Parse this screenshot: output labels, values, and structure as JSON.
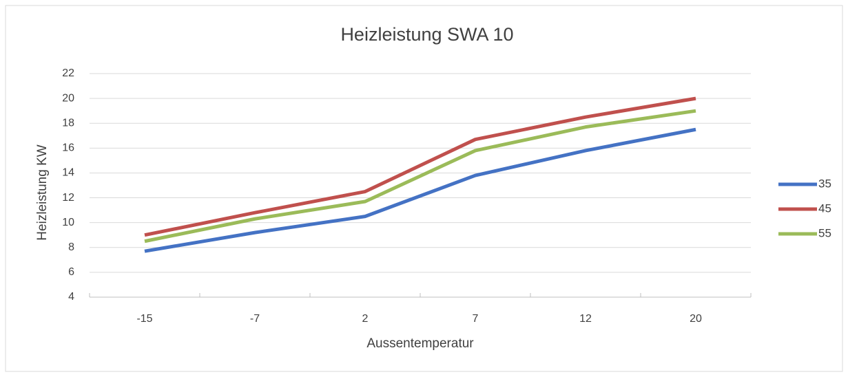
{
  "chart_data": {
    "type": "line",
    "title": "Heizleistung SWA 10",
    "x_label": "Aussentemperatur",
    "y_label": "Heizleistung KW",
    "categories": [
      "-15",
      "-7",
      "2",
      "7",
      "12",
      "20"
    ],
    "series": [
      {
        "name": "35",
        "color": "#4472c4",
        "values": [
          7.7,
          9.2,
          10.5,
          13.8,
          15.8,
          17.5
        ]
      },
      {
        "name": "45",
        "color": "#c0504d",
        "values": [
          9,
          10.8,
          12.5,
          16.7,
          18.5,
          20
        ]
      },
      {
        "name": "55",
        "color": "#9bbb59",
        "values": [
          8.5,
          10.3,
          11.7,
          15.8,
          17.7,
          19
        ]
      }
    ],
    "ylim": [
      4,
      22
    ],
    "yticks": [
      4,
      6,
      8,
      10,
      12,
      14,
      16,
      18,
      20,
      22
    ],
    "grid": true,
    "legend": "right"
  }
}
